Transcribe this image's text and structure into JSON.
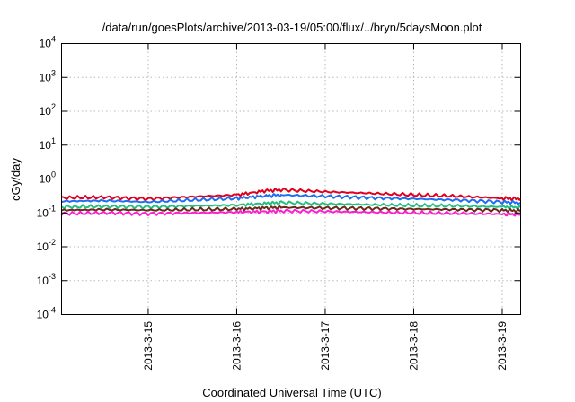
{
  "chart_data": {
    "type": "line",
    "title": "/data/run/goesPlots/archive/2013-03-19/05:00/flux/../bryn/5daysMoon.plot",
    "xlabel": "Coordinated Universal Time (UTC)",
    "ylabel": "cGy/day",
    "yscale": "log",
    "ylim": [
      0.0001,
      10000
    ],
    "y_ticks": [
      {
        "value": 0.0001,
        "base": "10",
        "exp": "-4"
      },
      {
        "value": 0.001,
        "base": "10",
        "exp": "-3"
      },
      {
        "value": 0.01,
        "base": "10",
        "exp": "-2"
      },
      {
        "value": 0.1,
        "base": "10",
        "exp": "-1"
      },
      {
        "value": 1,
        "base": "10",
        "exp": "0"
      },
      {
        "value": 10,
        "base": "10",
        "exp": "1"
      },
      {
        "value": 100,
        "base": "10",
        "exp": "2"
      },
      {
        "value": 1000,
        "base": "10",
        "exp": "3"
      },
      {
        "value": 10000,
        "base": "10",
        "exp": "4"
      }
    ],
    "xlim": [
      "2013-03-14 00:30",
      "2013-03-19 05:00"
    ],
    "x_ticks": [
      "2013-3-15",
      "2013-3-16",
      "2013-3-17",
      "2013-3-18",
      "2013-3-19"
    ],
    "grid": true,
    "legend": "none",
    "series": [
      {
        "color": "#e0001c",
        "x": [
          "2013-03-14 00:30",
          "2013-03-14 12:00",
          "2013-03-15 00:00",
          "2013-03-15 12:00",
          "2013-03-16 00:00",
          "2013-03-16 08:00",
          "2013-03-16 12:00",
          "2013-03-17 00:00",
          "2013-03-17 12:00",
          "2013-03-18 00:00",
          "2013-03-18 12:00",
          "2013-03-19 00:00",
          "2013-03-19 05:00"
        ],
        "y": [
          0.28,
          0.29,
          0.26,
          0.3,
          0.34,
          0.45,
          0.48,
          0.42,
          0.38,
          0.34,
          0.31,
          0.27,
          0.26
        ]
      },
      {
        "color": "#1c6ef2",
        "x": [
          "2013-03-14 00:30",
          "2013-03-14 12:00",
          "2013-03-15 00:00",
          "2013-03-15 12:00",
          "2013-03-16 00:00",
          "2013-03-16 08:00",
          "2013-03-16 12:00",
          "2013-03-17 00:00",
          "2013-03-17 12:00",
          "2013-03-18 00:00",
          "2013-03-18 12:00",
          "2013-03-19 00:00",
          "2013-03-19 05:00"
        ],
        "y": [
          0.22,
          0.23,
          0.21,
          0.24,
          0.27,
          0.32,
          0.34,
          0.31,
          0.28,
          0.26,
          0.24,
          0.21,
          0.2
        ]
      },
      {
        "color": "#22c080",
        "x": [
          "2013-03-14 00:30",
          "2013-03-14 12:00",
          "2013-03-15 00:00",
          "2013-03-15 12:00",
          "2013-03-16 00:00",
          "2013-03-16 08:00",
          "2013-03-16 12:00",
          "2013-03-17 00:00",
          "2013-03-17 12:00",
          "2013-03-18 00:00",
          "2013-03-18 12:00",
          "2013-03-19 00:00",
          "2013-03-19 05:00"
        ],
        "y": [
          0.15,
          0.155,
          0.15,
          0.16,
          0.17,
          0.19,
          0.2,
          0.185,
          0.175,
          0.165,
          0.16,
          0.15,
          0.145
        ]
      },
      {
        "color": "#6a2a1a",
        "x": [
          "2013-03-14 00:30",
          "2013-03-14 12:00",
          "2013-03-15 00:00",
          "2013-03-15 12:00",
          "2013-03-16 00:00",
          "2013-03-16 08:00",
          "2013-03-16 12:00",
          "2013-03-17 00:00",
          "2013-03-17 12:00",
          "2013-03-18 00:00",
          "2013-03-18 12:00",
          "2013-03-19 00:00",
          "2013-03-19 05:00"
        ],
        "y": [
          0.12,
          0.125,
          0.12,
          0.125,
          0.13,
          0.14,
          0.145,
          0.14,
          0.135,
          0.13,
          0.125,
          0.12,
          0.115
        ]
      },
      {
        "color": "#ff1ecf",
        "x": [
          "2013-03-14 00:30",
          "2013-03-14 12:00",
          "2013-03-15 00:00",
          "2013-03-15 12:00",
          "2013-03-16 00:00",
          "2013-03-16 08:00",
          "2013-03-16 12:00",
          "2013-03-17 00:00",
          "2013-03-17 12:00",
          "2013-03-18 00:00",
          "2013-03-18 12:00",
          "2013-03-19 00:00",
          "2013-03-19 05:00"
        ],
        "y": [
          0.095,
          0.1,
          0.095,
          0.1,
          0.105,
          0.11,
          0.115,
          0.11,
          0.105,
          0.1,
          0.097,
          0.092,
          0.09
        ]
      }
    ]
  }
}
